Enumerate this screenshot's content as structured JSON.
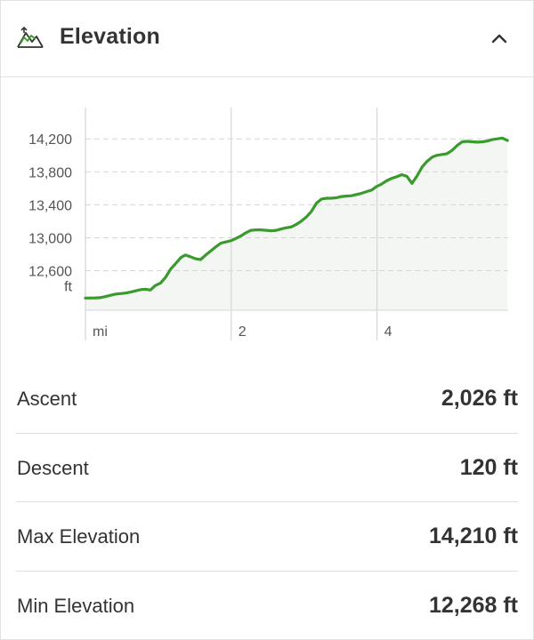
{
  "header": {
    "title": "Elevation",
    "icon": "mountain-elevation-icon",
    "collapse_icon": "chevron-up-icon"
  },
  "colors": {
    "line": "#3a9a2e",
    "fill": "#f3f6f3",
    "grid": "#d6d6d6"
  },
  "chart_data": {
    "type": "area",
    "x_unit": "mi",
    "y_unit": "ft",
    "x_ticks": [
      {
        "value": 0,
        "label": "mi"
      },
      {
        "value": 2,
        "label": "2"
      },
      {
        "value": 4,
        "label": "4"
      }
    ],
    "y_ticks": [
      {
        "value": 12200,
        "label": "ft"
      },
      {
        "value": 12600,
        "label": "12,600"
      },
      {
        "value": 13000,
        "label": "13,000"
      },
      {
        "value": 13400,
        "label": "13,400"
      },
      {
        "value": 13800,
        "label": "13,800"
      },
      {
        "value": 14200,
        "label": "14,200"
      }
    ],
    "xlim": [
      0,
      5.8
    ],
    "ylim": [
      12120,
      14580
    ],
    "grid": true,
    "series": [
      {
        "x": [
          0,
          0.14,
          0.2,
          0.27,
          0.34,
          0.41,
          0.48,
          0.55,
          0.62,
          0.69,
          0.76,
          0.83,
          0.89,
          0.96,
          1.03,
          1.1,
          1.17,
          1.24,
          1.31,
          1.37,
          1.44,
          1.51,
          1.58,
          1.65,
          1.72,
          1.79,
          1.86,
          1.93,
          2.0,
          2.06,
          2.13,
          2.2,
          2.27,
          2.34,
          2.41,
          2.48,
          2.55,
          2.62,
          2.68,
          2.75,
          2.82,
          2.89,
          2.96,
          3.03,
          3.1,
          3.17,
          3.24,
          3.31,
          3.37,
          3.44,
          3.51,
          3.58,
          3.65,
          3.72,
          3.79,
          3.86,
          3.93,
          3.99,
          4.06,
          4.13,
          4.2,
          4.27,
          4.34,
          4.41,
          4.48,
          4.55,
          4.62,
          4.69,
          4.76,
          4.82,
          4.89,
          4.96,
          5.03,
          5.1,
          5.17,
          5.24,
          5.31,
          5.38,
          5.45,
          5.52,
          5.58,
          5.65,
          5.72,
          5.79
        ],
        "y": [
          12268,
          12270,
          12272,
          12285,
          12300,
          12315,
          12322,
          12328,
          12340,
          12355,
          12370,
          12375,
          12365,
          12420,
          12450,
          12520,
          12620,
          12690,
          12760,
          12790,
          12770,
          12745,
          12735,
          12790,
          12840,
          12890,
          12935,
          12950,
          12965,
          12990,
          13020,
          13060,
          13090,
          13095,
          13095,
          13090,
          13085,
          13090,
          13105,
          13120,
          13130,
          13160,
          13200,
          13250,
          13320,
          13420,
          13470,
          13480,
          13480,
          13485,
          13500,
          13505,
          13510,
          13525,
          13540,
          13560,
          13580,
          13620,
          13650,
          13690,
          13720,
          13740,
          13765,
          13745,
          13660,
          13750,
          13860,
          13930,
          13980,
          14000,
          14010,
          14020,
          14060,
          14120,
          14165,
          14170,
          14165,
          14160,
          14165,
          14175,
          14190,
          14200,
          14210,
          14180
        ]
      }
    ]
  },
  "stats": [
    {
      "label": "Ascent",
      "value": "2,026 ft"
    },
    {
      "label": "Descent",
      "value": "120 ft"
    },
    {
      "label": "Max Elevation",
      "value": "14,210 ft"
    },
    {
      "label": "Min Elevation",
      "value": "12,268 ft"
    }
  ]
}
